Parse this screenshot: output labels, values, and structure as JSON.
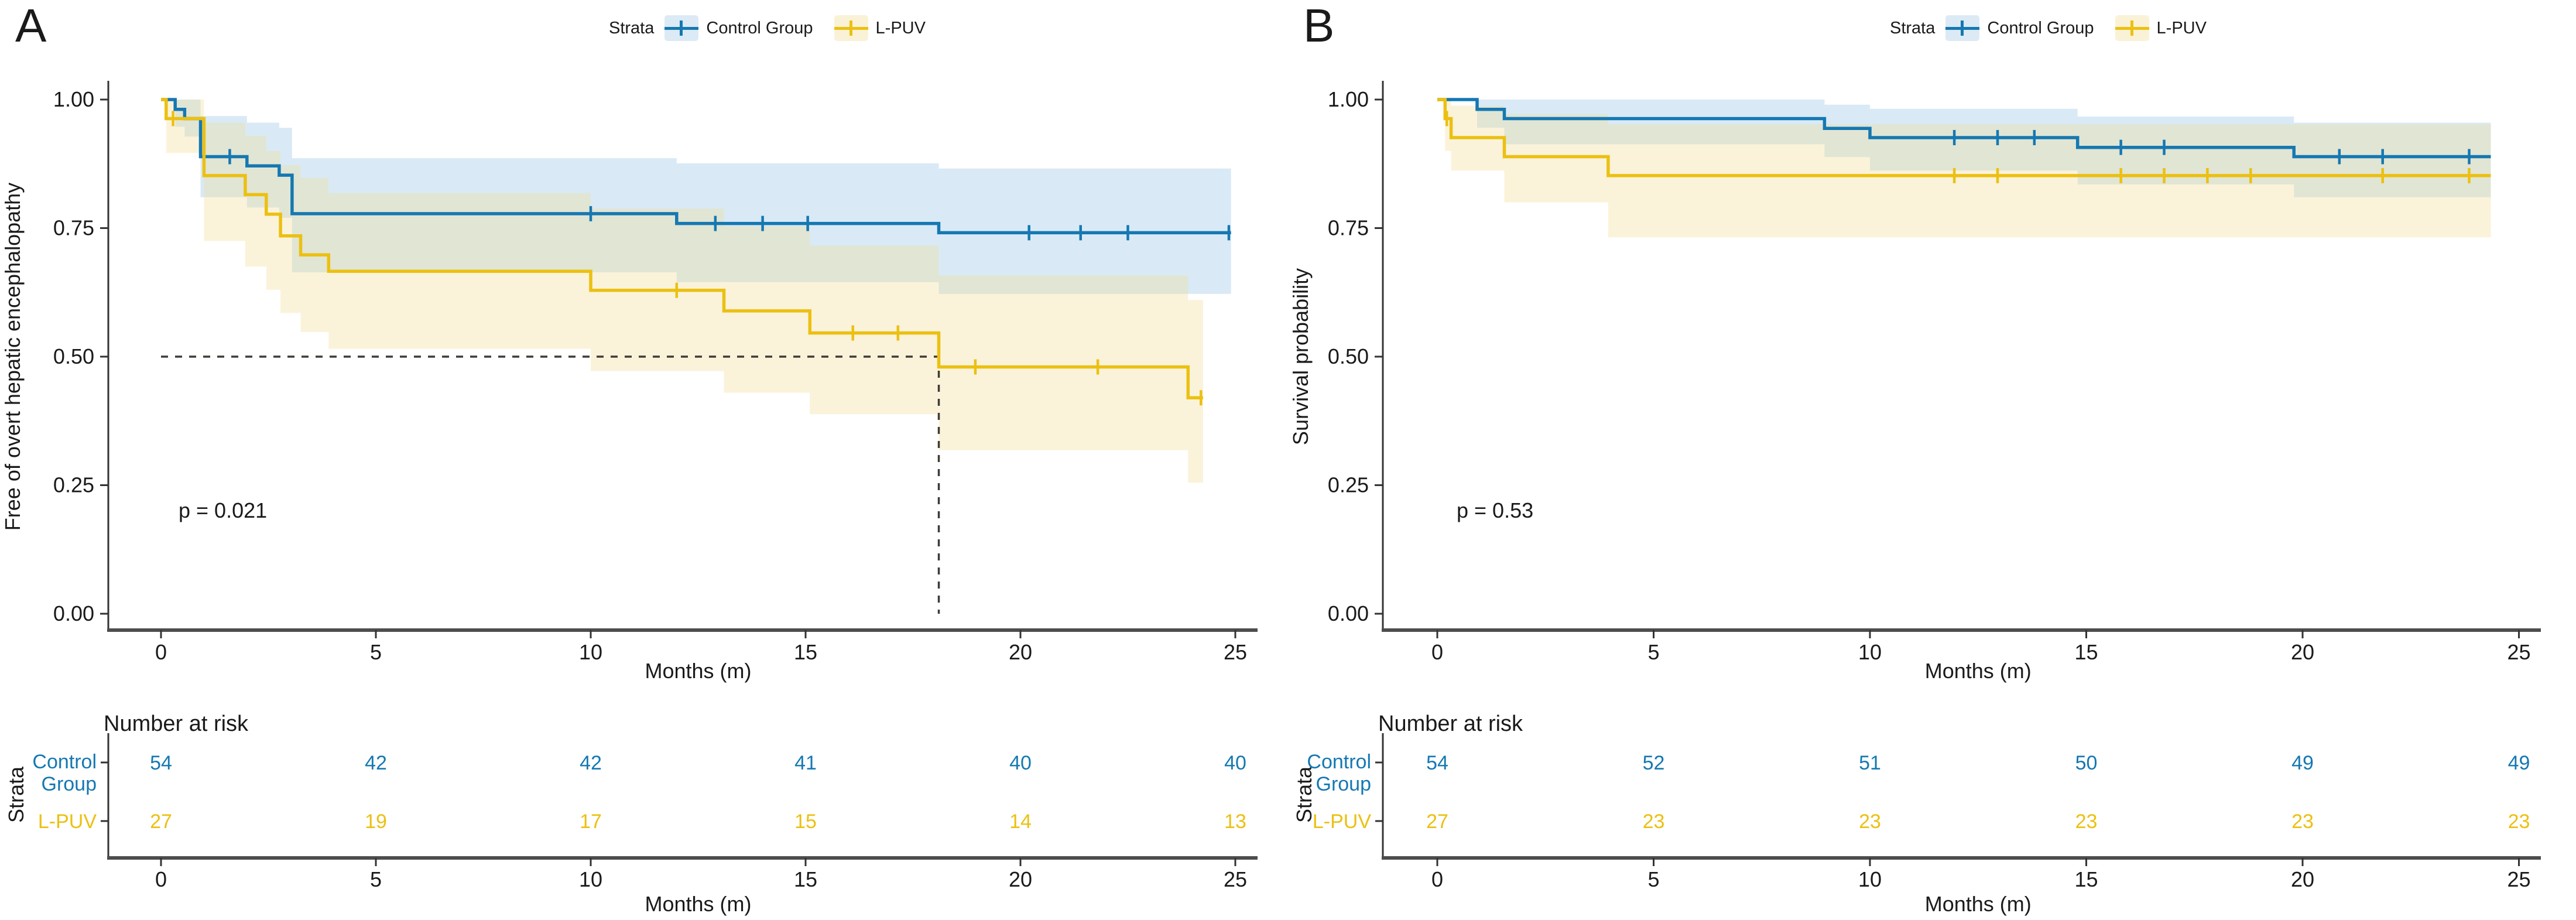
{
  "figure": {
    "background": "#ffffff",
    "text_color": "#1a1a1a",
    "axis_color": "#4d4d4d",
    "median_line_color": "#3f3b35"
  },
  "chart_data": [
    {
      "type": "line",
      "subtype": "kaplan-meier-step",
      "panel_letter": "A",
      "legend": {
        "title": "Strata"
      },
      "ylabel": "Free of overt hepatic encephalopathy",
      "xlabel": "Months (m)",
      "p_value": "p = 0.021",
      "xticks": [
        0,
        5,
        10,
        15,
        20,
        25
      ],
      "yticks": [
        0,
        0.25,
        0.5,
        0.75,
        1
      ],
      "ytick_labels": [
        "0.00",
        "0.25",
        "0.50",
        "0.75",
        "1.00"
      ],
      "xlim": [
        0,
        25
      ],
      "ylim": [
        0,
        1.05
      ],
      "grid": false,
      "legend_position": "top",
      "median": {
        "x": 18.1,
        "y": 0.5
      },
      "series": [
        {
          "name": "Control Group",
          "color": "#1578b2",
          "band_color": "#80b9e1",
          "band_opacity": 0.3,
          "key_bg": "#dceaf5",
          "steps": [
            [
              0,
              1
            ],
            [
              0.33,
              0.981
            ],
            [
              0.55,
              0.963
            ],
            [
              0.92,
              0.889
            ],
            [
              2.0,
              0.871
            ],
            [
              2.75,
              0.853
            ],
            [
              3.05,
              0.778
            ],
            [
              12.0,
              0.759
            ],
            [
              18.1,
              0.741
            ]
          ],
          "end": 24.9,
          "censors": [
            [
              1.0,
              0.889
            ],
            [
              1.6,
              0.889
            ],
            [
              10.0,
              0.778
            ],
            [
              12.9,
              0.759
            ],
            [
              14.0,
              0.759
            ],
            [
              15.05,
              0.759
            ],
            [
              20.2,
              0.741
            ],
            [
              21.4,
              0.741
            ],
            [
              22.5,
              0.741
            ],
            [
              24.85,
              0.741
            ]
          ],
          "ci": [
            [
              0,
              1,
              1
            ],
            [
              0.33,
              0.947,
              1
            ],
            [
              0.55,
              0.928,
              1
            ],
            [
              0.92,
              0.81,
              0.968
            ],
            [
              2.0,
              0.79,
              0.955
            ],
            [
              2.75,
              0.77,
              0.945
            ],
            [
              3.05,
              0.664,
              0.886
            ],
            [
              12.0,
              0.645,
              0.876
            ],
            [
              18.1,
              0.622,
              0.866
            ]
          ]
        },
        {
          "name": "L-PUV",
          "color": "#ecc011",
          "band_color": "#f0dd95",
          "band_opacity": 0.35,
          "key_bg": "#faf2d6",
          "steps": [
            [
              0,
              1
            ],
            [
              0.12,
              0.963
            ],
            [
              1.0,
              0.852
            ],
            [
              1.96,
              0.815
            ],
            [
              2.45,
              0.777
            ],
            [
              2.78,
              0.735
            ],
            [
              3.25,
              0.698
            ],
            [
              3.9,
              0.666
            ],
            [
              10.0,
              0.629
            ],
            [
              13.1,
              0.589
            ],
            [
              15.1,
              0.546
            ],
            [
              18.1,
              0.48
            ],
            [
              23.9,
              0.42
            ]
          ],
          "end": 24.25,
          "censors": [
            [
              0.28,
              0.963
            ],
            [
              12.0,
              0.629
            ],
            [
              16.1,
              0.546
            ],
            [
              17.15,
              0.546
            ],
            [
              18.95,
              0.48
            ],
            [
              21.8,
              0.48
            ],
            [
              24.2,
              0.42
            ]
          ],
          "ci": [
            [
              0,
              1,
              1
            ],
            [
              0.12,
              0.896,
              1
            ],
            [
              1.0,
              0.725,
              0.955
            ],
            [
              1.96,
              0.675,
              0.93
            ],
            [
              2.45,
              0.63,
              0.9
            ],
            [
              2.78,
              0.585,
              0.872
            ],
            [
              3.25,
              0.548,
              0.848
            ],
            [
              3.9,
              0.515,
              0.818
            ],
            [
              10.0,
              0.472,
              0.788
            ],
            [
              13.1,
              0.43,
              0.754
            ],
            [
              15.1,
              0.388,
              0.716
            ],
            [
              18.1,
              0.318,
              0.658
            ],
            [
              23.9,
              0.255,
              0.61
            ]
          ]
        }
      ],
      "risk_table": {
        "title": "Number at risk",
        "axis_label": "Strata",
        "xlabel": "Months (m)",
        "xticks": [
          0,
          5,
          10,
          15,
          20,
          25
        ],
        "rows": [
          {
            "label_lines": [
              "Control",
              "Group"
            ],
            "color": "#1578b2",
            "values": [
              54,
              42,
              42,
              41,
              40,
              40
            ]
          },
          {
            "label_lines": [
              "L-PUV"
            ],
            "color": "#ecc011",
            "values": [
              27,
              19,
              17,
              15,
              14,
              13
            ]
          }
        ]
      }
    },
    {
      "type": "line",
      "subtype": "kaplan-meier-step",
      "panel_letter": "B",
      "legend": {
        "title": "Strata"
      },
      "ylabel": "Survival probability",
      "xlabel": "Months (m)",
      "p_value": "p = 0.53",
      "xticks": [
        0,
        5,
        10,
        15,
        20,
        25
      ],
      "yticks": [
        0,
        0.25,
        0.5,
        0.75,
        1
      ],
      "ytick_labels": [
        "0.00",
        "0.25",
        "0.50",
        "0.75",
        "1.00"
      ],
      "xlim": [
        0,
        25
      ],
      "ylim": [
        0,
        1.05
      ],
      "grid": false,
      "legend_position": "top",
      "median": null,
      "series": [
        {
          "name": "Control Group",
          "color": "#1578b2",
          "band_color": "#80b9e1",
          "band_opacity": 0.3,
          "key_bg": "#dceaf5",
          "steps": [
            [
              0,
              1
            ],
            [
              0.92,
              0.981
            ],
            [
              1.55,
              0.963
            ],
            [
              8.95,
              0.944
            ],
            [
              10.0,
              0.926
            ],
            [
              14.8,
              0.907
            ],
            [
              19.8,
              0.889
            ]
          ],
          "end": 24.35,
          "censors": [
            [
              11.95,
              0.926
            ],
            [
              12.95,
              0.926
            ],
            [
              13.8,
              0.926
            ],
            [
              15.8,
              0.907
            ],
            [
              16.8,
              0.907
            ],
            [
              20.85,
              0.889
            ],
            [
              21.85,
              0.889
            ],
            [
              23.85,
              0.889
            ]
          ],
          "ci": [
            [
              0,
              1,
              1
            ],
            [
              0.92,
              0.945,
              1
            ],
            [
              1.55,
              0.913,
              1
            ],
            [
              8.95,
              0.888,
              0.99
            ],
            [
              10.0,
              0.862,
              0.982
            ],
            [
              14.8,
              0.835,
              0.967
            ],
            [
              19.8,
              0.81,
              0.955
            ]
          ]
        },
        {
          "name": "L-PUV",
          "color": "#ecc011",
          "band_color": "#f0dd95",
          "band_opacity": 0.35,
          "key_bg": "#faf2d6",
          "steps": [
            [
              0,
              1
            ],
            [
              0.18,
              0.963
            ],
            [
              0.32,
              0.926
            ],
            [
              1.55,
              0.889
            ],
            [
              3.95,
              0.852
            ]
          ],
          "end": 24.35,
          "censors": [
            [
              0.22,
              0.963
            ],
            [
              11.95,
              0.852
            ],
            [
              12.95,
              0.852
            ],
            [
              15.8,
              0.852
            ],
            [
              16.8,
              0.852
            ],
            [
              17.8,
              0.852
            ],
            [
              18.8,
              0.852
            ],
            [
              21.85,
              0.852
            ],
            [
              23.85,
              0.852
            ]
          ],
          "ci": [
            [
              0,
              1,
              1
            ],
            [
              0.18,
              0.9,
              1
            ],
            [
              0.32,
              0.862,
              0.988
            ],
            [
              1.55,
              0.8,
              0.972
            ],
            [
              3.95,
              0.732,
              0.952
            ]
          ]
        }
      ],
      "risk_table": {
        "title": "Number at risk",
        "axis_label": "Strata",
        "xlabel": "Months (m)",
        "xticks": [
          0,
          5,
          10,
          15,
          20,
          25
        ],
        "rows": [
          {
            "label_lines": [
              "Control",
              "Group"
            ],
            "color": "#1578b2",
            "values": [
              54,
              52,
              51,
              50,
              49,
              49
            ]
          },
          {
            "label_lines": [
              "L-PUV"
            ],
            "color": "#ecc011",
            "values": [
              27,
              23,
              23,
              23,
              23,
              23
            ]
          }
        ]
      }
    }
  ]
}
